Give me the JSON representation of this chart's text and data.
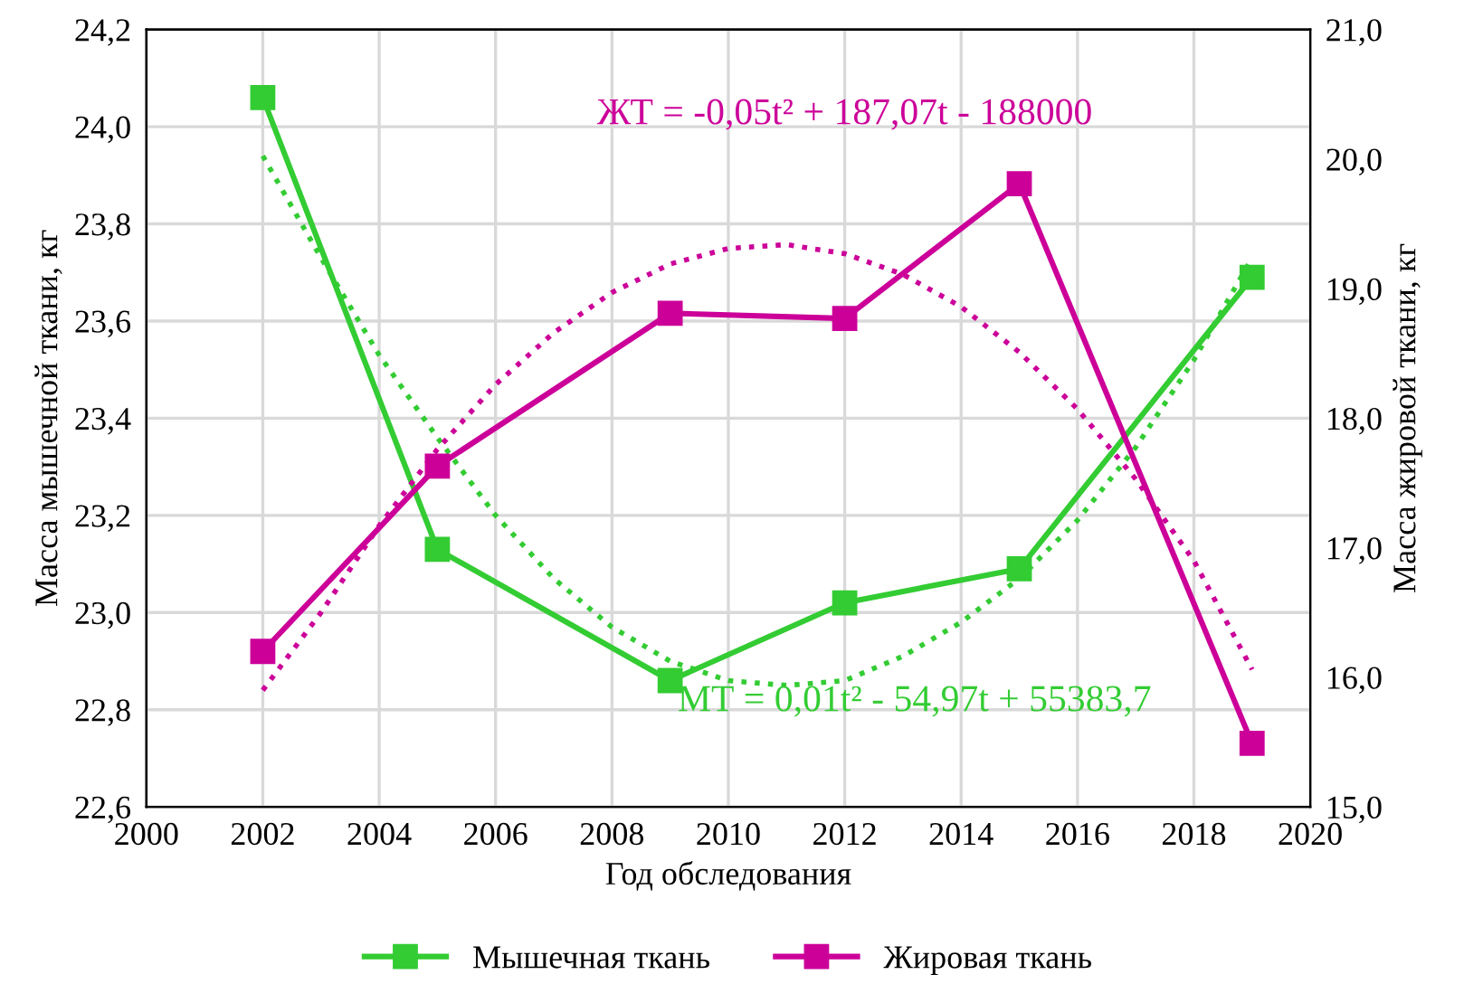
{
  "chart_data": {
    "type": "line",
    "xlabel": "Год обследования",
    "ylabel": "Масса мышечной ткани, кг",
    "y2label": "Масса жировой ткани, кг",
    "x": [
      2002,
      2005,
      2009,
      2012,
      2015,
      2019
    ],
    "series": [
      {
        "name": "Мышечная ткань",
        "color": "#33cc33",
        "values": [
          24.06,
          23.13,
          22.86,
          23.02,
          23.09,
          23.69
        ],
        "marker": "square",
        "line_style": "solid"
      },
      {
        "name": "Жировая ткань",
        "color": "#cc0099",
        "values": [
          16.2,
          17.63,
          18.81,
          18.77,
          19.81,
          15.49
        ],
        "axis": "y2",
        "marker": "square",
        "line_style": "solid"
      },
      {
        "color": "#33cc33",
        "x": [
          2002,
          2003,
          2004,
          2005,
          2006,
          2007,
          2008,
          2009,
          2010,
          2011,
          2012,
          2013,
          2014,
          2015,
          2016,
          2017,
          2018,
          2019
        ],
        "values": [
          23.94,
          23.73,
          23.53,
          23.36,
          23.2,
          23.07,
          22.97,
          22.9,
          22.86,
          22.85,
          22.86,
          22.91,
          22.98,
          23.07,
          23.19,
          23.34,
          23.52,
          23.73
        ],
        "marker": "none",
        "line_style": "dotted"
      },
      {
        "color": "#cc0099",
        "x": [
          2002,
          2003,
          2004,
          2005,
          2006,
          2007,
          2008,
          2009,
          2010,
          2011,
          2012,
          2013,
          2014,
          2015,
          2016,
          2017,
          2018,
          2019
        ],
        "values": [
          15.9,
          16.5,
          17.17,
          17.76,
          18.26,
          18.66,
          18.97,
          19.19,
          19.31,
          19.34,
          19.27,
          19.11,
          18.86,
          18.51,
          18.07,
          17.53,
          16.9,
          16.06
        ],
        "axis": "y2",
        "marker": "none",
        "line_style": "dotted"
      }
    ],
    "annotations": [
      "МТ = 0,01t² - 54,97t + 55383,7",
      "ЖТ = -0,05t² + 187,07t - 188000"
    ],
    "xlim": [
      2000,
      2020
    ],
    "xticks": [
      2000,
      2002,
      2004,
      2006,
      2008,
      2010,
      2012,
      2014,
      2016,
      2018,
      2020
    ],
    "ylim": [
      22.6,
      24.2
    ],
    "yticks": [
      {
        "value": 22.6,
        "label": "22,6"
      },
      {
        "value": 22.8,
        "label": "22,8"
      },
      {
        "value": 23.0,
        "label": "23,0"
      },
      {
        "value": 23.2,
        "label": "23,2"
      },
      {
        "value": 23.4,
        "label": "23,4"
      },
      {
        "value": 23.6,
        "label": "23,6"
      },
      {
        "value": 23.8,
        "label": "23,8"
      },
      {
        "value": 24.0,
        "label": "24,0"
      },
      {
        "value": 24.2,
        "label": "24,2"
      }
    ],
    "y2lim": [
      15.0,
      21.0
    ],
    "y2ticks": [
      {
        "value": 15.0,
        "label": "15,0"
      },
      {
        "value": 16.0,
        "label": "16,0"
      },
      {
        "value": 17.0,
        "label": "17,0"
      },
      {
        "value": 18.0,
        "label": "18,0"
      },
      {
        "value": 19.0,
        "label": "19,0"
      },
      {
        "value": 20.0,
        "label": "20,0"
      },
      {
        "value": 21.0,
        "label": "21,0"
      }
    ],
    "grid": true,
    "legend": "bottom"
  }
}
